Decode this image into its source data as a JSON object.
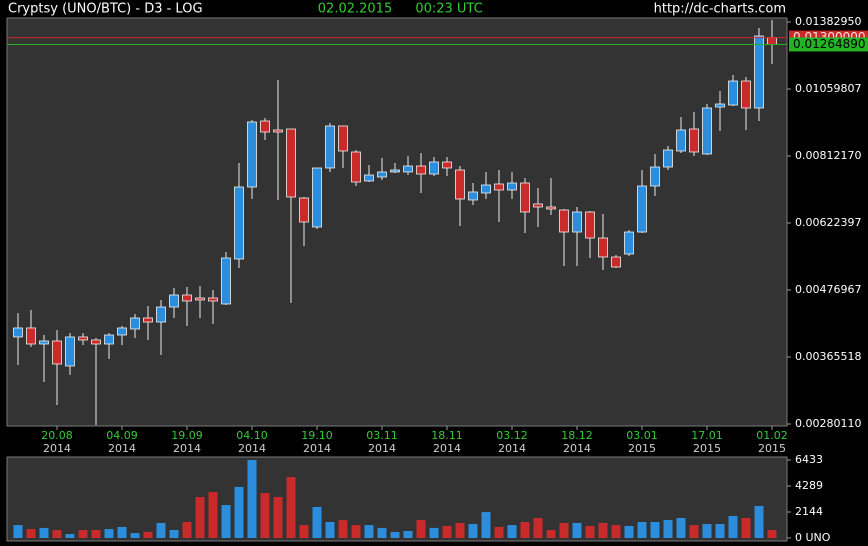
{
  "chart_data": {
    "type": "candlestick",
    "title": "Cryptsy (UNO/BTC) - D3 - LOG",
    "date": "02.02.2015",
    "time": "00:23 UTC",
    "source": "http://dc-charts.com",
    "log_scale": true,
    "up_color": "#2b8ddc",
    "down_color": "#c92a2a",
    "categories": [
      null,
      null,
      null,
      "20.08",
      null,
      null,
      null,
      null,
      "04.09",
      null,
      null,
      null,
      null,
      "19.09",
      null,
      null,
      null,
      null,
      "04.10",
      null,
      null,
      null,
      null,
      "19.10",
      null,
      null,
      null,
      null,
      "03.11",
      null,
      null,
      null,
      null,
      "18.11",
      null,
      null,
      null,
      null,
      "03.12",
      null,
      null,
      null,
      null,
      "18.12",
      null,
      null,
      null,
      null,
      "03.01",
      null,
      null,
      null,
      null,
      "17.01",
      null,
      null,
      null,
      null,
      "01.02"
    ],
    "category_years": [
      null,
      null,
      null,
      "2014",
      null,
      null,
      null,
      null,
      "2014",
      null,
      null,
      null,
      null,
      "2014",
      null,
      null,
      null,
      null,
      "2014",
      null,
      null,
      null,
      null,
      "2014",
      null,
      null,
      null,
      null,
      "2014",
      null,
      null,
      null,
      null,
      "2014",
      null,
      null,
      null,
      null,
      "2014",
      null,
      null,
      null,
      null,
      "2014",
      null,
      null,
      null,
      null,
      "2015",
      null,
      null,
      null,
      null,
      "2015",
      null,
      null,
      null,
      null,
      "2015"
    ],
    "open": [
      0.003958,
      0.004102,
      0.003849,
      0.003895,
      0.003527,
      0.003958,
      0.003911,
      0.003849,
      0.003989,
      0.004085,
      0.004268,
      0.0042,
      0.004458,
      0.004676,
      0.004621,
      0.004621,
      0.004512,
      0.005395,
      0.007181,
      0.009333,
      0.009006,
      0.009042,
      0.006874,
      0.006126,
      0.007744,
      0.00915,
      0.008252,
      0.007354,
      0.007472,
      0.007622,
      0.007622,
      0.007805,
      0.007561,
      0.00793,
      0.007682,
      0.00682,
      0.007012,
      0.007267,
      0.007096,
      0.007296,
      0.006712,
      0.006633,
      0.006554,
      0.006005,
      0.006502,
      0.005864,
      0.005438,
      0.005503,
      0.006005,
      0.007209,
      0.007774,
      0.008285,
      0.009042,
      0.008187,
      0.009867,
      0.009945,
      0.01094,
      0.009828,
      0.013
    ],
    "high": [
      0.004353,
      0.004405,
      0.003989,
      0.004069,
      0.004021,
      0.004021,
      0.003942,
      0.004021,
      0.004134,
      0.004336,
      0.004476,
      0.004584,
      0.004808,
      0.004827,
      0.004846,
      0.00477,
      0.005547,
      0.007899,
      0.00937,
      0.009445,
      0.010984,
      0.009042,
      0.006901,
      0.007744,
      0.00926,
      0.00915,
      0.008318,
      0.007837,
      0.008058,
      0.007899,
      0.008122,
      0.008219,
      0.00809,
      0.00809,
      0.007805,
      0.007296,
      0.007622,
      0.007682,
      0.007622,
      0.007442,
      0.007152,
      0.007442,
      0.00658,
      0.006633,
      0.006528,
      0.006451,
      0.005481,
      0.006053,
      0.007682,
      0.008187,
      0.008451,
      0.009482,
      0.009673,
      0.009985,
      0.010514,
      0.011204,
      0.011116,
      0.013504,
      0.01394
    ],
    "low": [
      0.003541,
      0.003803,
      0.00331,
      0.003021,
      0.003403,
      0.003834,
      0.00279,
      0.003626,
      0.003834,
      0.003942,
      0.003911,
      0.003684,
      0.004268,
      0.004134,
      0.004268,
      0.004167,
      0.004494,
      0.005205,
      0.006847,
      0.008655,
      0.00682,
      0.00453,
      0.00568,
      0.006077,
      0.007622,
      0.007744,
      0.007209,
      0.007325,
      0.007383,
      0.007591,
      0.007531,
      0.007012,
      0.007501,
      0.007501,
      0.00615,
      0.006685,
      0.006847,
      0.006249,
      0.006847,
      0.005982,
      0.006126,
      0.006425,
      0.005247,
      0.005247,
      0.005416,
      0.005164,
      0.005205,
      0.005459,
      0.005982,
      0.006929,
      0.007682,
      0.008219,
      0.008122,
      0.008154,
      0.00897,
      0.009906,
      0.009006,
      0.009333,
      0.011705
    ],
    "close": [
      0.004102,
      0.003849,
      0.003895,
      0.003555,
      0.003958,
      0.003911,
      0.003849,
      0.003989,
      0.004102,
      0.004268,
      0.0042,
      0.004458,
      0.004676,
      0.004566,
      0.004584,
      0.004566,
      0.005416,
      0.007181,
      0.009296,
      0.008934,
      0.008934,
      0.006901,
      0.006249,
      0.007744,
      0.00915,
      0.008285,
      0.007325,
      0.007531,
      0.007622,
      0.007682,
      0.007805,
      0.007561,
      0.00793,
      0.007744,
      0.006847,
      0.00704,
      0.007238,
      0.007096,
      0.007296,
      0.006502,
      0.006633,
      0.00658,
      0.006005,
      0.006502,
      0.005864,
      0.005438,
      0.005226,
      0.006005,
      0.007209,
      0.007774,
      0.008318,
      0.009006,
      0.008252,
      0.009828,
      0.009985,
      0.01094,
      0.009828,
      0.013081,
      0.0126489
    ],
    "ylim": [
      0.0028011,
      0.0138295
    ],
    "yticks": [
      {
        "value": 0.0138295,
        "label": "0.01382950"
      },
      {
        "value": 0.0105981,
        "label": "0.01059807"
      },
      {
        "value": 0.0081217,
        "label": "0.00812170"
      },
      {
        "value": 0.006224,
        "label": "0.00622397"
      },
      {
        "value": 0.0047697,
        "label": "0.00476967"
      },
      {
        "value": 0.0036552,
        "label": "0.00365518"
      },
      {
        "value": 0.0028011,
        "label": "0.00280110"
      }
    ],
    "price_lines": [
      {
        "value": 0.013,
        "label": "0.01300000",
        "color": "#c92a2a"
      },
      {
        "value": 0.0126489,
        "label": "0.01264890",
        "color": "#22b422"
      }
    ],
    "volume": {
      "values": [
        1070,
        740,
        830,
        660,
        330,
        660,
        660,
        740,
        910,
        410,
        500,
        1240,
        660,
        1320,
        3380,
        3790,
        2720,
        4210,
        6433,
        3710,
        3380,
        5030,
        1070,
        2560,
        1320,
        1480,
        1070,
        1070,
        830,
        500,
        580,
        1480,
        830,
        990,
        1240,
        1150,
        2140,
        910,
        1070,
        1320,
        1650,
        660,
        1240,
        1240,
        990,
        1240,
        1070,
        990,
        1320,
        1320,
        1480,
        1650,
        1070,
        1150,
        1150,
        1820,
        1650,
        2640,
        660
      ],
      "ylim": [
        0,
        6433
      ],
      "yticks": [
        6433,
        4289,
        2144,
        {
          "value": 0,
          "label": "0 UNO"
        }
      ]
    }
  }
}
